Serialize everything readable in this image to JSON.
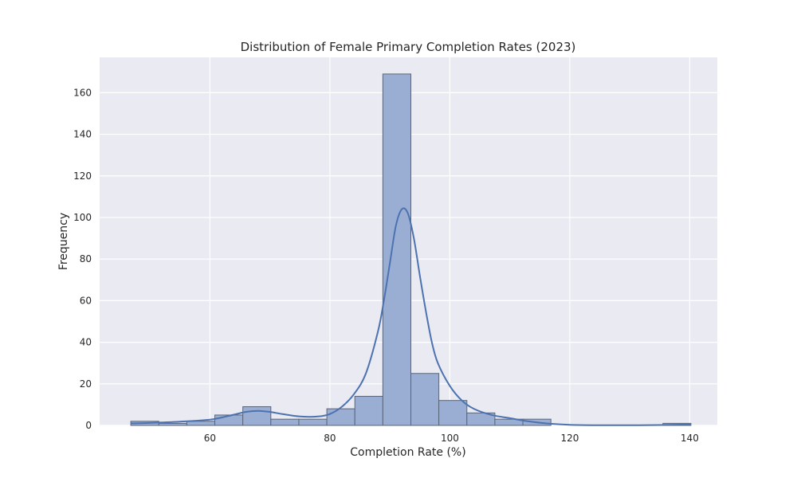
{
  "chart_data": {
    "type": "bar",
    "title": "Distribution of Female Primary Completion Rates (2023)",
    "xlabel": "Completion Rate (%)",
    "ylabel": "Frequency",
    "xlim": [
      41.6,
      144.6
    ],
    "ylim": [
      0,
      177
    ],
    "xticks": [
      60,
      80,
      100,
      120,
      140
    ],
    "yticks": [
      0,
      20,
      40,
      60,
      80,
      100,
      120,
      140,
      160
    ],
    "grid": true,
    "colors": {
      "background": "#eaeaf2",
      "bar_fill": "#9aaed3",
      "bar_edge": "#5a6578",
      "kde_line": "#4c72b0",
      "grid": "#ffffff"
    },
    "histogram": {
      "bin_edges": [
        46.8,
        51.47,
        56.14,
        60.81,
        65.48,
        70.15,
        74.82,
        79.49,
        84.16,
        88.83,
        93.5,
        98.17,
        102.84,
        107.51,
        112.18,
        116.85,
        121.52,
        126.19,
        130.86,
        135.53,
        140.2
      ],
      "counts": [
        2,
        1,
        2,
        5,
        9,
        3,
        3,
        8,
        14,
        169,
        25,
        12,
        6,
        3,
        3,
        0,
        0,
        0,
        0,
        1
      ]
    },
    "kde": {
      "x": [
        46.8,
        50,
        55,
        60,
        63,
        66,
        68,
        70,
        72,
        75,
        78,
        80,
        82,
        84,
        86,
        88,
        89,
        90,
        91,
        92,
        93,
        94,
        95,
        96,
        97,
        98,
        100,
        102,
        104,
        107,
        110,
        113,
        116,
        120,
        125,
        130,
        135,
        140.2
      ],
      "y": [
        1,
        1.2,
        1.8,
        2.8,
        4.5,
        6.5,
        7,
        6.5,
        5.5,
        4.3,
        4.3,
        5.5,
        9,
        15,
        25,
        45,
        60,
        78,
        96,
        104,
        102,
        90,
        72,
        55,
        40,
        30,
        19,
        12,
        8,
        5,
        3.5,
        2,
        1,
        0.3,
        0.1,
        0.1,
        0.2,
        0.5
      ]
    }
  }
}
